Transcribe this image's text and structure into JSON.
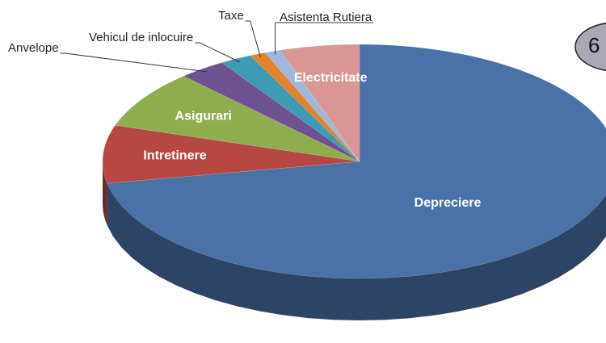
{
  "chart_data": {
    "type": "pie3d",
    "categories": [
      "Depreciere",
      "Intretinere",
      "Asigurari",
      "Anvelope",
      "Vehicul de inlocuire",
      "Taxe",
      "Asistenta Rutiera",
      "Electricitate"
    ],
    "values": [
      72,
      8,
      8,
      3,
      2,
      1,
      1,
      5
    ],
    "colors": [
      "#4a72a8",
      "#b84643",
      "#8fad4c",
      "#6e518f",
      "#3d9bb5",
      "#e2832f",
      "#9db8dc",
      "#d99694"
    ]
  },
  "badge": {
    "label": "6"
  }
}
